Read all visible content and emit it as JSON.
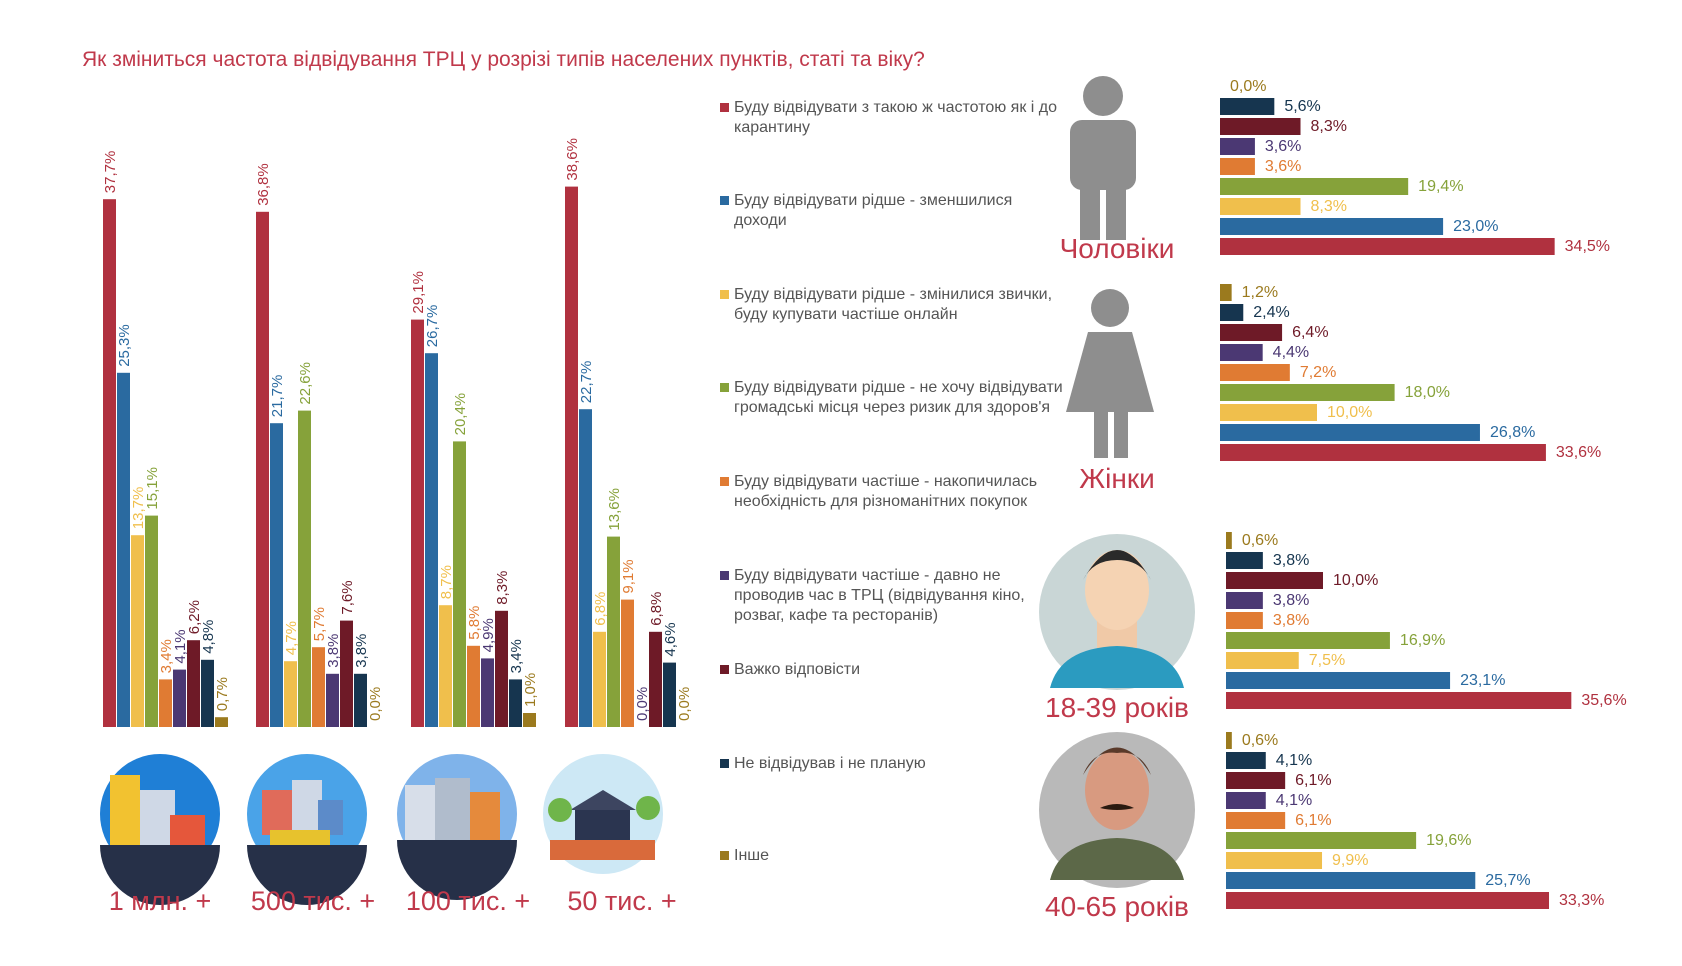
{
  "title": "Як зміниться частота відвідування ТРЦ у розрізі типів населених пунктів, статі та віку?",
  "chart_data": [
    {
      "type": "bar",
      "categories": [
        "1 млн. +",
        "500 тис. +",
        "100 тис. +",
        "50 тис. +"
      ],
      "series": [
        {
          "name": "Буду відвідувати  з такою ж частотою як і до карантину",
          "color": "#b0313f",
          "values": [
            37.7,
            36.8,
            29.1,
            38.6
          ],
          "value_labels": [
            "37,7%",
            "36,8%",
            "29,1%",
            "38,6%"
          ]
        },
        {
          "name": "Буду відвідувати рідше - зменшилися доходи",
          "color": "#2a6aa0",
          "values": [
            25.3,
            21.7,
            26.7,
            22.7
          ],
          "value_labels": [
            "25,3%",
            "21,7%",
            "26,7%",
            "22,7%"
          ]
        },
        {
          "name": "Буду відвідувати рідше - змінилися звички, буду купувати частіше онлайн",
          "color": "#f0bf4c",
          "values": [
            13.7,
            4.7,
            8.7,
            6.8
          ],
          "value_labels": [
            "13,7%",
            "4,7%",
            "8,7%",
            "6,8%"
          ]
        },
        {
          "name": "Буду відвідувати рідше - не хочу відвідувати  громадські місця через ризик для здоров'я",
          "color": "#86a23a",
          "values": [
            15.1,
            22.6,
            20.4,
            13.6
          ],
          "value_labels": [
            "15,1%",
            "22,6%",
            "20,4%",
            "13,6%"
          ]
        },
        {
          "name": "Буду відвідувати частіше - накопичилась необхідність для різноманітних покупок",
          "color": "#e07b33",
          "values": [
            3.4,
            5.7,
            5.8,
            9.1
          ],
          "value_labels": [
            "3,4%",
            "5,7%",
            "5,8%",
            "9,1%"
          ]
        },
        {
          "name": "Буду відвідувати частіше - давно не проводив час в ТРЦ (відвідування кіно, розваг, кафе та ресторанів)",
          "color": "#4b3873",
          "values": [
            4.1,
            3.8,
            4.9,
            0.0
          ],
          "value_labels": [
            "4,1%",
            "3,8%",
            "4,9%",
            "0,0%"
          ]
        },
        {
          "name": "Важко відповісти",
          "color": "#6e1a27",
          "values": [
            6.2,
            7.6,
            8.3,
            6.8
          ],
          "value_labels": [
            "6,2%",
            "7,6%",
            "8,3%",
            "6,8%"
          ]
        },
        {
          "name": "Не відвідував  і не планую",
          "color": "#16354f",
          "values": [
            4.8,
            3.8,
            3.4,
            4.6
          ],
          "value_labels": [
            "4,8%",
            "3,8%",
            "3,4%",
            "4,6%"
          ]
        },
        {
          "name": "Інше",
          "color": "#9b7a1e",
          "values": [
            0.7,
            0.0,
            1.0,
            0.0
          ],
          "value_labels": [
            "0,7%",
            "0,0%",
            "1,0%",
            "0,0%"
          ]
        }
      ]
    },
    {
      "type": "barh",
      "categories": [
        "Чоловіки",
        "Жінки",
        "18-39 років",
        "40-65 років"
      ],
      "series": [
        {
          "color": "#b0313f",
          "values": [
            34.5,
            33.6,
            35.6,
            33.3
          ],
          "value_labels": [
            "34,5%",
            "33,6%",
            "35,6%",
            "33,3%"
          ]
        },
        {
          "color": "#2a6aa0",
          "values": [
            23.0,
            26.8,
            23.1,
            25.7
          ],
          "value_labels": [
            "23,0%",
            "26,8%",
            "23,1%",
            "25,7%"
          ]
        },
        {
          "color": "#f0bf4c",
          "values": [
            8.3,
            10.0,
            7.5,
            9.9
          ],
          "value_labels": [
            "8,3%",
            "10,0%",
            "7,5%",
            "9,9%"
          ]
        },
        {
          "color": "#86a23a",
          "values": [
            19.4,
            18.0,
            16.9,
            19.6
          ],
          "value_labels": [
            "19,4%",
            "18,0%",
            "16,9%",
            "19,6%"
          ]
        },
        {
          "color": "#e07b33",
          "values": [
            3.6,
            7.2,
            3.8,
            6.1
          ],
          "value_labels": [
            "3,6%",
            "7,2%",
            "3,8%",
            "6,1%"
          ]
        },
        {
          "color": "#4b3873",
          "values": [
            3.6,
            4.4,
            3.8,
            4.1
          ],
          "value_labels": [
            "3,6%",
            "4,4%",
            "3,8%",
            "4,1%"
          ]
        },
        {
          "color": "#6e1a27",
          "values": [
            8.3,
            6.4,
            10.0,
            6.1
          ],
          "value_labels": [
            "8,3%",
            "6,4%",
            "10,0%",
            "6,1%"
          ]
        },
        {
          "color": "#16354f",
          "values": [
            5.6,
            2.4,
            3.8,
            4.1
          ],
          "value_labels": [
            "5,6%",
            "2,4%",
            "3,8%",
            "4,1%"
          ]
        },
        {
          "color": "#9b7a1e",
          "values": [
            0.0,
            1.2,
            0.6,
            0.6
          ],
          "value_labels": [
            "0,0%",
            "1,2%",
            "0,6%",
            "0,6%"
          ]
        }
      ]
    }
  ]
}
